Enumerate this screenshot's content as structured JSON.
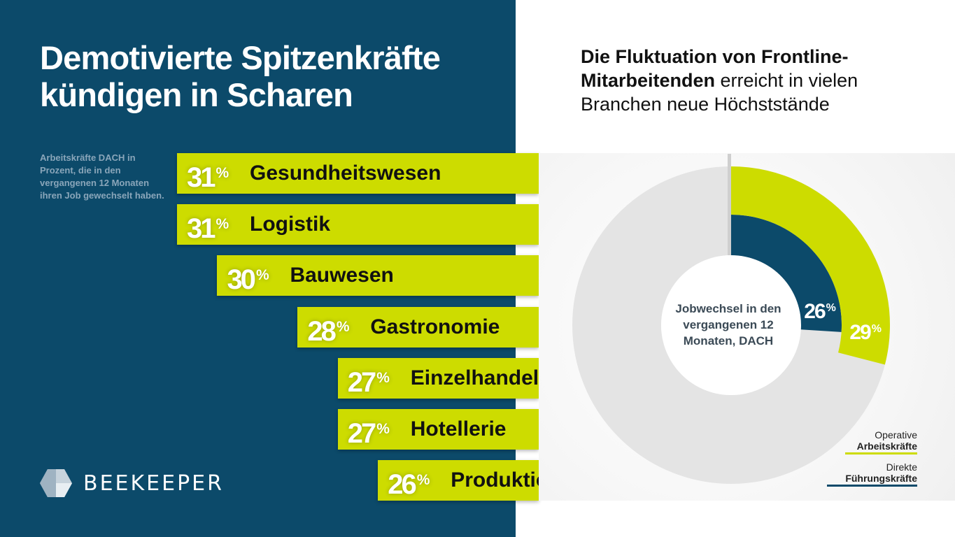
{
  "left": {
    "title_line1": "Demotivierte Spitzenkräfte",
    "title_line2": "kündigen in Scharen",
    "note": "Arbeitskräfte DACH in Prozent, die in den vergangenen 12 Monaten ihren Job gewechselt haben."
  },
  "right": {
    "title_bold": "Die Fluktuation von Frontline-Mitarbeitenden",
    "title_rest": " erreicht in vielen Branchen neue Höchststände"
  },
  "logo": {
    "text": "BEEKEEPER",
    "icon": "hexagon-logo-icon"
  },
  "percent_symbol": "%",
  "colors": {
    "navy": "#0c4a6a",
    "lime": "#cddc00",
    "ring_bg": "#e4e4e4"
  },
  "chart_data": [
    {
      "type": "bar",
      "orientation": "horizontal",
      "unit": "%",
      "categories": [
        "Gesundheitswesen",
        "Logistik",
        "Bauwesen",
        "Gastronomie",
        "Einzelhandel",
        "Hotellerie",
        "Produktion"
      ],
      "values": [
        31,
        31,
        30,
        28,
        27,
        27,
        26
      ],
      "value_labels": [
        "31",
        "31",
        "30",
        "28",
        "27",
        "27",
        "26"
      ]
    },
    {
      "type": "pie",
      "style": "donut",
      "center_label": "Jobwechsel in den vergangenen 12 Monaten, DACH",
      "unit": "%",
      "series": [
        {
          "name": "Operative Arbeitskräfte",
          "legend_line1": "Operative",
          "legend_line2": "Arbeitskräfte",
          "value": 29,
          "label": "29",
          "color": "#cddc00"
        },
        {
          "name": "Direkte Führungskräfte",
          "legend_line1": "Direkte",
          "legend_line2": "Führungskräfte",
          "value": 26,
          "label": "26",
          "color": "#0c4a6a"
        }
      ]
    }
  ]
}
